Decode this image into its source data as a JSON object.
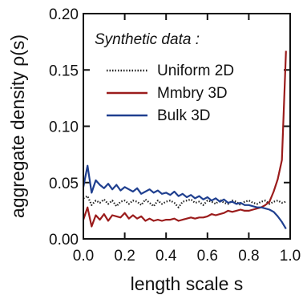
{
  "chart_data": {
    "type": "line",
    "xlabel": "length scale s",
    "ylabel": "aggregate density ρ(s)",
    "xlim": [
      0.0,
      1.0
    ],
    "ylim": [
      0.0,
      0.2
    ],
    "xticks": [
      0.0,
      0.2,
      0.4,
      0.6,
      0.8,
      1.0
    ],
    "xtick_labels": [
      "0.0",
      "0.2",
      "0.4",
      "0.6",
      "0.8",
      "1.0"
    ],
    "yticks": [
      0.0,
      0.05,
      0.1,
      0.15,
      0.2
    ],
    "ytick_labels": [
      "0.00",
      "0.05",
      "0.10",
      "0.15",
      "0.20"
    ],
    "grid": false,
    "legend": {
      "title": "Synthetic data :",
      "placement": "top-left"
    },
    "series": [
      {
        "name": "Uniform 2D",
        "color": "#222222",
        "style": "dotted",
        "x": [
          0.0,
          0.02,
          0.04,
          0.06,
          0.08,
          0.1,
          0.12,
          0.14,
          0.16,
          0.18,
          0.2,
          0.22,
          0.24,
          0.26,
          0.28,
          0.3,
          0.32,
          0.34,
          0.36,
          0.38,
          0.4,
          0.42,
          0.44,
          0.46,
          0.48,
          0.5,
          0.52,
          0.54,
          0.56,
          0.58,
          0.6,
          0.62,
          0.64,
          0.66,
          0.68,
          0.7,
          0.72,
          0.74,
          0.76,
          0.78,
          0.8,
          0.82,
          0.84,
          0.86,
          0.88,
          0.9,
          0.92,
          0.94,
          0.96,
          0.98
        ],
        "y": [
          0.036,
          0.038,
          0.03,
          0.034,
          0.032,
          0.035,
          0.031,
          0.034,
          0.029,
          0.033,
          0.034,
          0.031,
          0.034,
          0.033,
          0.03,
          0.035,
          0.032,
          0.029,
          0.034,
          0.031,
          0.033,
          0.034,
          0.032,
          0.028,
          0.033,
          0.034,
          0.035,
          0.032,
          0.033,
          0.03,
          0.034,
          0.033,
          0.031,
          0.035,
          0.032,
          0.031,
          0.034,
          0.033,
          0.03,
          0.033,
          0.034,
          0.032,
          0.031,
          0.033,
          0.034,
          0.031,
          0.033,
          0.034,
          0.032,
          0.033
        ]
      },
      {
        "name": "Mmbry 3D",
        "color": "#9b1c1c",
        "style": "solid",
        "x": [
          0.0,
          0.02,
          0.04,
          0.06,
          0.08,
          0.1,
          0.12,
          0.14,
          0.16,
          0.18,
          0.2,
          0.22,
          0.24,
          0.26,
          0.28,
          0.3,
          0.32,
          0.34,
          0.36,
          0.38,
          0.4,
          0.42,
          0.44,
          0.46,
          0.48,
          0.5,
          0.52,
          0.54,
          0.56,
          0.58,
          0.6,
          0.62,
          0.64,
          0.66,
          0.68,
          0.7,
          0.72,
          0.74,
          0.76,
          0.78,
          0.8,
          0.82,
          0.84,
          0.86,
          0.88,
          0.9,
          0.92,
          0.94,
          0.96,
          0.98
        ],
        "y": [
          0.017,
          0.028,
          0.011,
          0.021,
          0.017,
          0.022,
          0.016,
          0.021,
          0.02,
          0.019,
          0.023,
          0.018,
          0.021,
          0.018,
          0.02,
          0.016,
          0.018,
          0.016,
          0.017,
          0.016,
          0.017,
          0.017,
          0.018,
          0.016,
          0.017,
          0.018,
          0.019,
          0.018,
          0.019,
          0.019,
          0.02,
          0.022,
          0.021,
          0.022,
          0.023,
          0.025,
          0.024,
          0.025,
          0.026,
          0.025,
          0.025,
          0.026,
          0.027,
          0.028,
          0.03,
          0.033,
          0.042,
          0.053,
          0.07,
          0.167
        ]
      },
      {
        "name": "Bulk 3D",
        "color": "#1f3f8f",
        "style": "solid",
        "x": [
          0.0,
          0.02,
          0.04,
          0.06,
          0.08,
          0.1,
          0.12,
          0.14,
          0.16,
          0.18,
          0.2,
          0.22,
          0.24,
          0.26,
          0.28,
          0.3,
          0.32,
          0.34,
          0.36,
          0.38,
          0.4,
          0.42,
          0.44,
          0.46,
          0.48,
          0.5,
          0.52,
          0.54,
          0.56,
          0.58,
          0.6,
          0.62,
          0.64,
          0.66,
          0.68,
          0.7,
          0.72,
          0.74,
          0.76,
          0.78,
          0.8,
          0.82,
          0.84,
          0.86,
          0.88,
          0.9,
          0.92,
          0.94,
          0.96,
          0.98
        ],
        "y": [
          0.046,
          0.065,
          0.041,
          0.052,
          0.048,
          0.045,
          0.049,
          0.044,
          0.048,
          0.043,
          0.046,
          0.044,
          0.042,
          0.045,
          0.04,
          0.042,
          0.044,
          0.041,
          0.043,
          0.04,
          0.041,
          0.039,
          0.042,
          0.038,
          0.04,
          0.037,
          0.039,
          0.036,
          0.038,
          0.035,
          0.037,
          0.034,
          0.036,
          0.033,
          0.035,
          0.032,
          0.033,
          0.031,
          0.032,
          0.03,
          0.03,
          0.029,
          0.028,
          0.028,
          0.027,
          0.026,
          0.024,
          0.02,
          0.015,
          0.009
        ]
      }
    ]
  }
}
